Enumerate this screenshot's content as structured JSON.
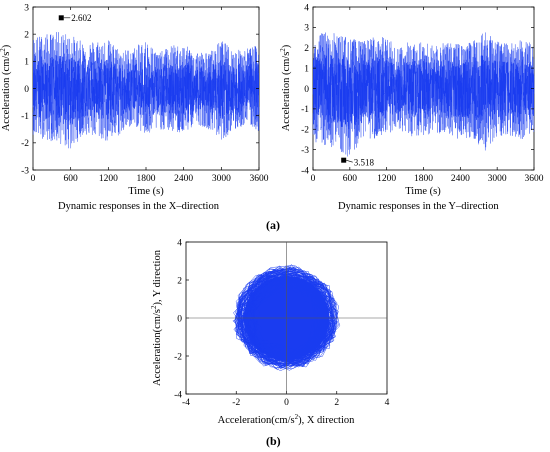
{
  "figure": {
    "caption_a": "Dynamic responses in the X–direction",
    "caption_b": "Dynamic responses in the Y–direction",
    "panel_a": "(a)",
    "panel_b": "(b)",
    "colors": {
      "signal": "#1a3cf0",
      "axis": "#000000",
      "marker": "#000000"
    }
  },
  "chart_data": [
    {
      "type": "line",
      "description_panel": "a-left",
      "xlabel": "Time (s)",
      "ylabel": "Acceleration (cm/s²)",
      "xlim": [
        0,
        3600
      ],
      "ylim": [
        -3,
        3
      ],
      "xticks": [
        "0",
        "600",
        "1200",
        "1800",
        "2400",
        "3000",
        "3600"
      ],
      "yticks": [
        "3",
        "2",
        "1",
        "0",
        "-1",
        "-2",
        "-3"
      ],
      "series": [
        {
          "x": [
            0,
            200,
            400,
            600,
            800,
            1000,
            1200,
            1400,
            1600,
            1800,
            2000,
            2200,
            2400,
            2600,
            2800,
            3000,
            3200,
            3400,
            3600
          ],
          "y_upper": [
            1.9,
            2.0,
            2.1,
            2.0,
            1.7,
            1.8,
            1.8,
            1.4,
            1.5,
            1.8,
            1.3,
            1.6,
            1.6,
            1.4,
            1.3,
            1.8,
            1.4,
            1.5,
            1.6
          ],
          "y_lower": [
            -1.7,
            -1.9,
            -2.0,
            -2.3,
            -1.7,
            -1.8,
            -2.0,
            -1.7,
            -1.3,
            -1.8,
            -1.5,
            -1.6,
            -1.7,
            -1.3,
            -1.5,
            -1.9,
            -1.6,
            -1.3,
            -1.6
          ]
        }
      ],
      "annotation": {
        "x": 450,
        "y": 2.602,
        "label": "2.602"
      }
    },
    {
      "type": "line",
      "description_panel": "a-right",
      "xlabel": "Time (s)",
      "ylabel": "Acceleration (cm/s²)",
      "xlim": [
        0,
        3600
      ],
      "ylim": [
        -4,
        4
      ],
      "xticks": [
        "0",
        "600",
        "1200",
        "1800",
        "2400",
        "3000",
        "3600"
      ],
      "yticks": [
        "4",
        "3",
        "2",
        "1",
        "0",
        "-1",
        "-2",
        "-3",
        "-4"
      ],
      "series": [
        {
          "x": [
            0,
            200,
            400,
            600,
            800,
            1000,
            1200,
            1400,
            1600,
            1800,
            2000,
            2200,
            2400,
            2600,
            2800,
            3000,
            3200,
            3400,
            3600
          ],
          "y_upper": [
            2.6,
            2.8,
            2.7,
            2.5,
            2.3,
            2.6,
            2.5,
            2.0,
            2.4,
            2.3,
            2.1,
            2.3,
            2.2,
            2.3,
            3.0,
            2.3,
            2.2,
            2.4,
            2.2
          ],
          "y_lower": [
            -2.6,
            -2.8,
            -3.0,
            -3.5,
            -2.4,
            -2.5,
            -2.5,
            -2.0,
            -2.4,
            -2.3,
            -2.2,
            -2.4,
            -2.5,
            -2.4,
            -3.1,
            -2.4,
            -2.3,
            -2.5,
            -2.2
          ]
        }
      ],
      "annotation": {
        "x": 500,
        "y": -3.518,
        "label": "3.518"
      }
    },
    {
      "type": "scatter",
      "description_panel": "b",
      "xlabel": "Acceleration(cm/s²), X direction",
      "ylabel": "Acceleration(cm/s²),  Y direction",
      "xlim": [
        -4,
        4
      ],
      "ylim": [
        -4,
        4
      ],
      "xticks": [
        "-4",
        "-2",
        "0",
        "2",
        "4"
      ],
      "yticks": [
        "4",
        "2",
        "0",
        "-2",
        "-4"
      ],
      "cloud": {
        "center": [
          0,
          0
        ],
        "radius_x": 2.0,
        "radius_y": 2.6
      }
    }
  ]
}
